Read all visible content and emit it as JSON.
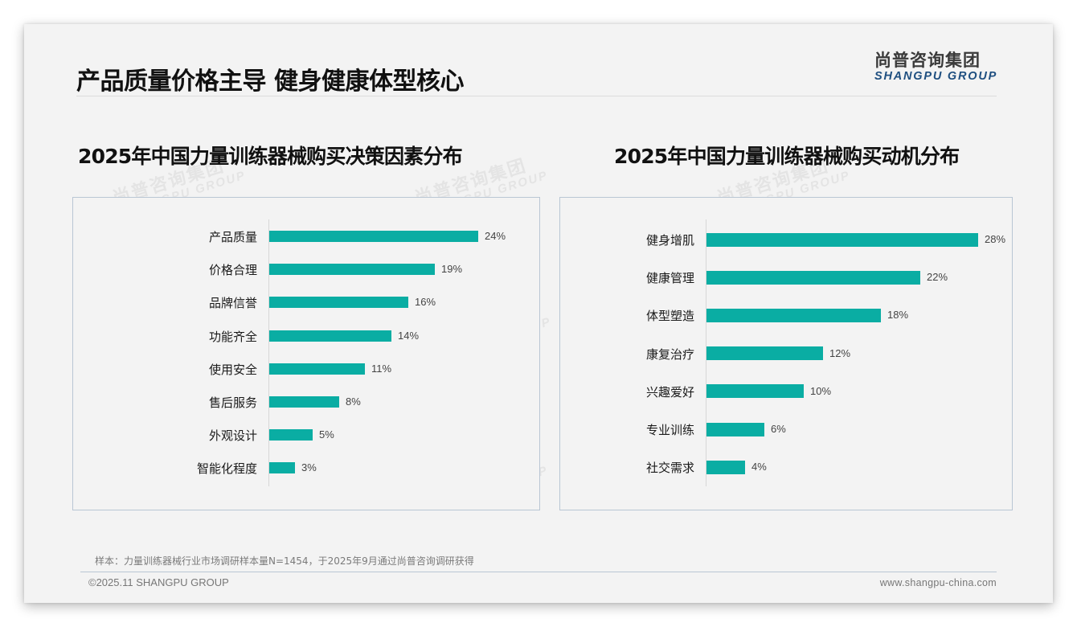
{
  "header": {
    "title": "产品质量价格主导 健身健康体型核心",
    "logo_cn": "尚普咨询集团",
    "logo_en": "SHANGPU GROUP"
  },
  "watermark": {
    "cn": "尚普咨询集团",
    "en": "SHANGPU GROUP"
  },
  "colors": {
    "bar": "#0aada3",
    "background": "#f3f3f3",
    "panel_border": "#b9c6d4",
    "logo_en": "#1f4f80"
  },
  "chart_data": [
    {
      "type": "bar",
      "orientation": "horizontal",
      "title": "2025年中国力量训练器械购买决策因素分布",
      "categories": [
        "产品质量",
        "价格合理",
        "品牌信誉",
        "功能齐全",
        "使用安全",
        "售后服务",
        "外观设计",
        "智能化程度"
      ],
      "values": [
        24,
        19,
        16,
        14,
        11,
        8,
        5,
        3
      ],
      "labels": [
        "24%",
        "19%",
        "16%",
        "14%",
        "11%",
        "8%",
        "5%",
        "3%"
      ],
      "unit": "%",
      "xlabel": "",
      "ylabel": "",
      "grid": false,
      "legend": null
    },
    {
      "type": "bar",
      "orientation": "horizontal",
      "title": "2025年中国力量训练器械购买动机分布",
      "categories": [
        "健身增肌",
        "健康管理",
        "体型塑造",
        "康复治疗",
        "兴趣爱好",
        "专业训练",
        "社交需求"
      ],
      "values": [
        28,
        22,
        18,
        12,
        10,
        6,
        4
      ],
      "labels": [
        "28%",
        "22%",
        "18%",
        "12%",
        "10%",
        "6%",
        "4%"
      ],
      "unit": "%",
      "xlabel": "",
      "ylabel": "",
      "grid": false,
      "legend": null
    }
  ],
  "footer": {
    "note": "样本：力量训练器械行业市场调研样本量N=1454，于2025年9月通过尚普咨询调研获得",
    "copyright": "©2025.11 SHANGPU GROUP",
    "website": "www.shangpu-china.com"
  }
}
